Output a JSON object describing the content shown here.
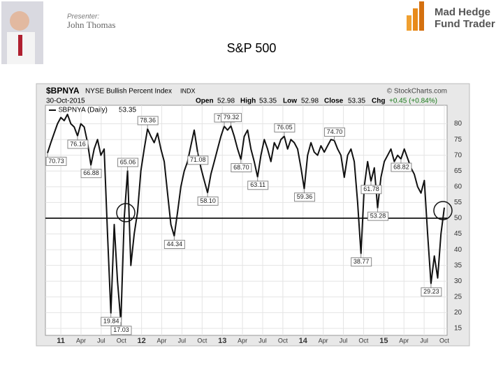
{
  "slide": {
    "presenter_label": "Presenter:",
    "presenter_name": "John Thomas",
    "logo_line1": "Mad Hedge",
    "logo_line2": "Fund Trader",
    "title": "S&P 500"
  },
  "chart_data": {
    "type": "line",
    "symbol": "$BPNYA",
    "name": "NYSE Bullish Percent Index",
    "exchange": "INDX",
    "source": "© StockCharts.com",
    "date": "30-Oct-2015",
    "quote": {
      "open_label": "Open",
      "open": 52.98,
      "high_label": "High",
      "high": 53.35,
      "low_label": "Low",
      "low": 52.98,
      "close_label": "Close",
      "close": 53.35,
      "chg_label": "Chg",
      "chg": "+0.45 (+0.84%)"
    },
    "legend_value": 53.35,
    "series": [
      {
        "name": "$BPNYA (Daily)",
        "color": "#111111",
        "values": [
          70.73,
          74,
          77,
          80,
          82,
          81,
          83,
          80,
          79,
          76.16,
          80,
          79,
          74,
          66.88,
          72,
          75,
          70,
          72,
          45,
          19.84,
          48,
          30,
          17.03,
          50,
          65.06,
          35,
          45,
          52,
          65,
          72,
          78.36,
          76,
          74,
          77,
          72,
          68,
          58,
          48,
          44.34,
          52,
          60,
          65,
          68,
          73,
          78,
          71.08,
          66,
          62,
          58.1,
          64,
          68,
          72,
          76,
          79.21,
          78,
          79.32,
          76,
          72,
          68.7,
          76,
          78,
          72,
          68,
          63.11,
          70,
          75,
          72,
          68,
          74,
          72,
          75,
          76.05,
          72,
          75,
          74,
          72,
          66,
          59.36,
          70,
          74,
          71,
          70,
          73,
          71,
          73,
          75,
          74.7,
          72,
          70,
          63,
          70,
          72,
          68,
          55,
          38.77,
          60,
          68,
          61.78,
          66,
          53.28,
          63,
          68,
          70,
          72,
          68,
          70,
          68.82,
          72,
          69,
          66,
          64,
          60,
          58,
          62,
          45,
          29.23,
          38,
          31,
          45,
          53.35
        ],
        "value_labels": [
          "70.73",
          null,
          null,
          null,
          null,
          null,
          null,
          null,
          null,
          "76.16",
          null,
          null,
          null,
          "66.88",
          null,
          null,
          null,
          null,
          null,
          "19.84",
          null,
          null,
          "17.03",
          null,
          "65.06",
          null,
          null,
          null,
          null,
          null,
          "78.36",
          null,
          null,
          null,
          null,
          null,
          null,
          null,
          "44.34",
          null,
          null,
          null,
          null,
          null,
          null,
          "71.08",
          null,
          null,
          "58.10",
          null,
          null,
          null,
          null,
          "79.21",
          null,
          "79.32",
          null,
          null,
          "68.70",
          null,
          null,
          null,
          null,
          "63.11",
          null,
          null,
          null,
          null,
          null,
          null,
          null,
          "76.05",
          null,
          null,
          null,
          null,
          null,
          "59.36",
          null,
          null,
          null,
          null,
          null,
          null,
          null,
          null,
          "74.70",
          null,
          null,
          null,
          null,
          null,
          null,
          null,
          "38.77",
          null,
          null,
          "61.78",
          null,
          "53.28",
          null,
          null,
          null,
          null,
          null,
          null,
          "68.82",
          null,
          null,
          null,
          null,
          null,
          null,
          null,
          null,
          "29.23",
          null,
          null,
          null,
          null
        ]
      }
    ],
    "reference_line": 50,
    "ylim": [
      13,
      83
    ],
    "yticks": [
      15,
      20,
      25,
      30,
      35,
      40,
      45,
      50,
      55,
      60,
      65,
      70,
      75,
      80
    ],
    "xticks": [
      "11",
      "Apr",
      "Jul",
      "Oct",
      "12",
      "Apr",
      "Jul",
      "Oct",
      "13",
      "Apr",
      "Jul",
      "Oct",
      "14",
      "Apr",
      "Jul",
      "Oct",
      "15",
      "Apr",
      "Jul",
      "Oct"
    ],
    "grid": true
  }
}
